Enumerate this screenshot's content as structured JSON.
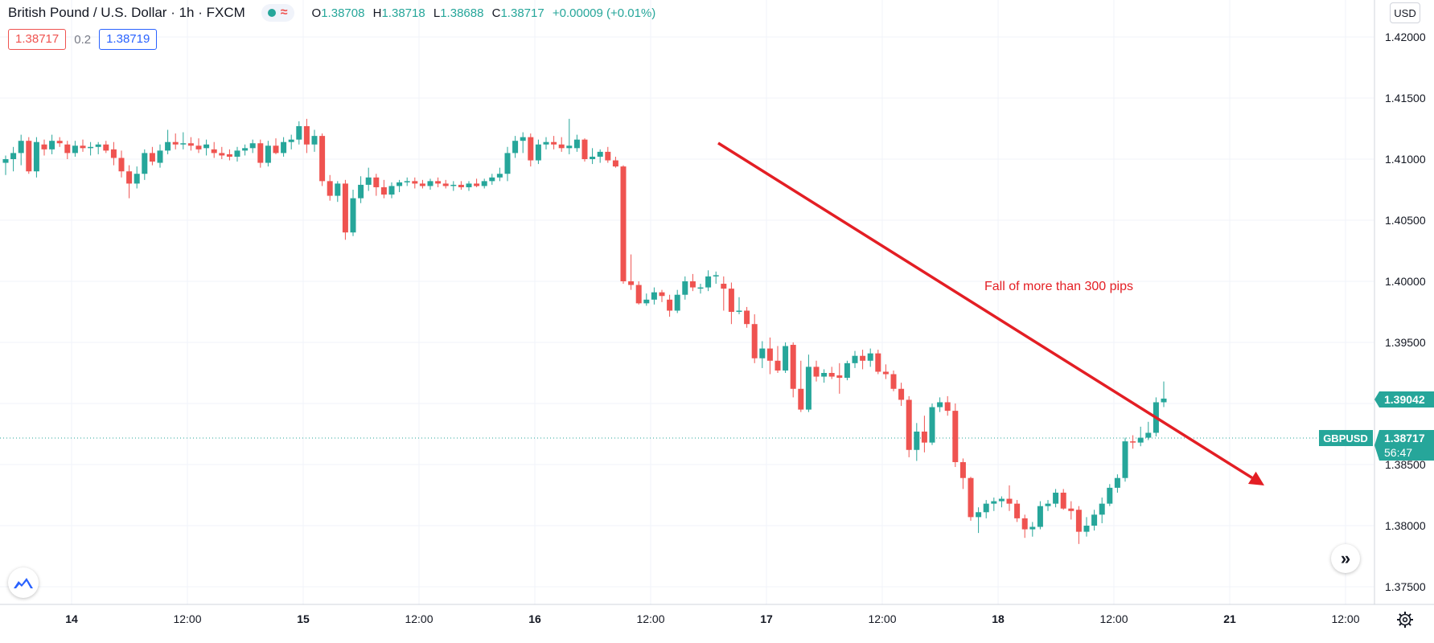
{
  "legend": {
    "symbol": "British Pound / U.S. Dollar · 1h · FXCM",
    "wave_glyph": "≈",
    "open_key": "O",
    "open": "1.38708",
    "high_key": "H",
    "high": "1.38718",
    "low_key": "L",
    "low": "1.38688",
    "close_key": "C",
    "close": "1.38717",
    "change": "+0.00009 (+0.01%)"
  },
  "quote": {
    "sell": "1.38717",
    "spread": "0.2",
    "buy": "1.38719"
  },
  "currency": "USD",
  "annotation": {
    "text": "Fall of more than 300 pips",
    "color": "#e31e24"
  },
  "price_labels": {
    "high_price": "1.39042",
    "current_symbol": "GBPUSD",
    "current_price": "1.38717",
    "countdown": "56:47"
  },
  "colors": {
    "up": "#26a69a",
    "down": "#ef5350",
    "arrow": "#e31e24",
    "grid": "#f0f3fa"
  },
  "icons": {
    "logo": "tradingview-logo-icon",
    "scroll": "scroll-to-realtime-icon",
    "settings": "gear-icon"
  },
  "chart_data": {
    "type": "candlestick",
    "title": "British Pound / U.S. Dollar · 1h · FXCM",
    "x_axis": {
      "type": "time",
      "ticks": [
        "14",
        "12:00",
        "15",
        "12:00",
        "16",
        "12:00",
        "17",
        "12:00",
        "18",
        "12:00",
        "21",
        "12:00"
      ]
    },
    "y_axis": {
      "ylim": [
        1.3735,
        1.4225
      ],
      "ticks": [
        "1.37500",
        "1.38000",
        "1.38500",
        "1.39000",
        "1.39500",
        "1.40000",
        "1.40500",
        "1.41000",
        "1.41500",
        "1.42000"
      ]
    },
    "grid": true,
    "current_price": 1.38717,
    "series": [
      {
        "ohlc": [
          [
            1.4097,
            1.4103,
            1.4087,
            1.41
          ],
          [
            1.41,
            1.411,
            1.409,
            1.4105
          ],
          [
            1.4105,
            1.412,
            1.4095,
            1.4115
          ],
          [
            1.4115,
            1.4118,
            1.4088,
            1.409
          ],
          [
            1.409,
            1.4118,
            1.4085,
            1.4114
          ],
          [
            1.4112,
            1.4116,
            1.4103,
            1.4108
          ],
          [
            1.4108,
            1.412,
            1.4104,
            1.4115
          ],
          [
            1.4115,
            1.4118,
            1.411,
            1.4113
          ],
          [
            1.4112,
            1.4115,
            1.41,
            1.4105
          ],
          [
            1.4105,
            1.4115,
            1.4102,
            1.4111
          ],
          [
            1.4111,
            1.4116,
            1.4106,
            1.4109
          ],
          [
            1.4109,
            1.4114,
            1.4103,
            1.411
          ],
          [
            1.411,
            1.4114,
            1.4104,
            1.4112
          ],
          [
            1.4112,
            1.4115,
            1.4105,
            1.4107
          ],
          [
            1.4108,
            1.4114,
            1.4095,
            1.4101
          ],
          [
            1.4101,
            1.4107,
            1.4085,
            1.409
          ],
          [
            1.409,
            1.4095,
            1.4068,
            1.408
          ],
          [
            1.408,
            1.4094,
            1.4076,
            1.4088
          ],
          [
            1.4088,
            1.4108,
            1.4083,
            1.4105
          ],
          [
            1.4105,
            1.411,
            1.4095,
            1.4098
          ],
          [
            1.4097,
            1.4112,
            1.4093,
            1.4107
          ],
          [
            1.4107,
            1.4124,
            1.4104,
            1.4114
          ],
          [
            1.4114,
            1.4121,
            1.4108,
            1.4112
          ],
          [
            1.4112,
            1.4122,
            1.4108,
            1.4113
          ],
          [
            1.4113,
            1.4118,
            1.4107,
            1.4111
          ],
          [
            1.4111,
            1.4117,
            1.4105,
            1.4108
          ],
          [
            1.4109,
            1.4116,
            1.4103,
            1.4112
          ],
          [
            1.4108,
            1.4114,
            1.4101,
            1.4105
          ],
          [
            1.4105,
            1.411,
            1.41,
            1.4103
          ],
          [
            1.4104,
            1.4108,
            1.4099,
            1.4102
          ],
          [
            1.4102,
            1.411,
            1.4098,
            1.4107
          ],
          [
            1.4107,
            1.4112,
            1.4103,
            1.4109
          ],
          [
            1.4109,
            1.4116,
            1.4105,
            1.4113
          ],
          [
            1.4113,
            1.4116,
            1.4093,
            1.4097
          ],
          [
            1.4097,
            1.4115,
            1.4094,
            1.4111
          ],
          [
            1.4111,
            1.4117,
            1.4104,
            1.4105
          ],
          [
            1.4105,
            1.4118,
            1.4102,
            1.4114
          ],
          [
            1.4114,
            1.412,
            1.4108,
            1.4116
          ],
          [
            1.4116,
            1.4131,
            1.4112,
            1.4127
          ],
          [
            1.4127,
            1.4133,
            1.4105,
            1.4112
          ],
          [
            1.4112,
            1.4124,
            1.4106,
            1.4119
          ],
          [
            1.4119,
            1.4121,
            1.4078,
            1.4082
          ],
          [
            1.4082,
            1.4087,
            1.4066,
            1.407
          ],
          [
            1.407,
            1.4082,
            1.4065,
            1.408
          ],
          [
            1.408,
            1.4083,
            1.4034,
            1.404
          ],
          [
            1.404,
            1.4075,
            1.4037,
            1.4068
          ],
          [
            1.4068,
            1.4086,
            1.4064,
            1.4079
          ],
          [
            1.4079,
            1.4093,
            1.4074,
            1.4085
          ],
          [
            1.4085,
            1.4088,
            1.407,
            1.4077
          ],
          [
            1.4077,
            1.4083,
            1.4068,
            1.4071
          ],
          [
            1.4071,
            1.4081,
            1.4068,
            1.4078
          ],
          [
            1.4078,
            1.4083,
            1.4073,
            1.4081
          ],
          [
            1.4081,
            1.4085,
            1.4078,
            1.4082
          ],
          [
            1.4082,
            1.4085,
            1.4076,
            1.408
          ],
          [
            1.408,
            1.4083,
            1.4076,
            1.4078
          ],
          [
            1.4078,
            1.4084,
            1.4075,
            1.4082
          ],
          [
            1.4082,
            1.4085,
            1.4077,
            1.408
          ],
          [
            1.408,
            1.4083,
            1.4076,
            1.4078
          ],
          [
            1.4078,
            1.4082,
            1.4074,
            1.4079
          ],
          [
            1.4079,
            1.4082,
            1.4075,
            1.4077
          ],
          [
            1.4077,
            1.4082,
            1.4074,
            1.408
          ],
          [
            1.408,
            1.4084,
            1.4077,
            1.4078
          ],
          [
            1.4078,
            1.4084,
            1.4076,
            1.4082
          ],
          [
            1.4082,
            1.4088,
            1.4079,
            1.4085
          ],
          [
            1.4085,
            1.4093,
            1.4082,
            1.4088
          ],
          [
            1.4088,
            1.411,
            1.4082,
            1.4105
          ],
          [
            1.4105,
            1.4119,
            1.4101,
            1.4115
          ],
          [
            1.4115,
            1.4122,
            1.4105,
            1.4118
          ],
          [
            1.4118,
            1.4121,
            1.4094,
            1.4099
          ],
          [
            1.4099,
            1.4116,
            1.4096,
            1.4112
          ],
          [
            1.4112,
            1.4118,
            1.4108,
            1.4114
          ],
          [
            1.4114,
            1.4119,
            1.4108,
            1.4112
          ],
          [
            1.4112,
            1.4118,
            1.4106,
            1.4109
          ],
          [
            1.4109,
            1.4133,
            1.4104,
            1.4111
          ],
          [
            1.4109,
            1.412,
            1.4106,
            1.4116
          ],
          [
            1.4116,
            1.4117,
            1.4098,
            1.41
          ],
          [
            1.41,
            1.4109,
            1.4096,
            1.4102
          ],
          [
            1.4102,
            1.4108,
            1.4097,
            1.4106
          ],
          [
            1.4106,
            1.411,
            1.4097,
            1.4099
          ],
          [
            1.4099,
            1.4102,
            1.4093,
            1.4094
          ],
          [
            1.4094,
            1.4095,
            1.3998,
            1.4
          ],
          [
            1.4,
            1.4022,
            1.3993,
            1.3997
          ],
          [
            1.3997,
            1.4,
            1.3981,
            1.3982
          ],
          [
            1.3982,
            1.399,
            1.398,
            1.3985
          ],
          [
            1.3985,
            1.3995,
            1.3981,
            1.3991
          ],
          [
            1.3991,
            1.3993,
            1.3983,
            1.3988
          ],
          [
            1.3985,
            1.3989,
            1.3971,
            1.3976
          ],
          [
            1.3976,
            1.3993,
            1.3974,
            1.3989
          ],
          [
            1.3989,
            1.4004,
            1.3985,
            1.4
          ],
          [
            1.4,
            1.4006,
            1.3992,
            1.3995
          ],
          [
            1.3994,
            1.3998,
            1.399,
            1.3995
          ],
          [
            1.3995,
            1.4009,
            1.3992,
            1.4004
          ],
          [
            1.4004,
            1.4008,
            1.3998,
            1.4005
          ],
          [
            1.3998,
            1.4004,
            1.3976,
            1.3994
          ],
          [
            1.3994,
            1.3999,
            1.3965,
            1.3975
          ],
          [
            1.3975,
            1.3987,
            1.3973,
            1.3976
          ],
          [
            1.3976,
            1.3979,
            1.3962,
            1.3965
          ],
          [
            1.3965,
            1.3973,
            1.3933,
            1.3937
          ],
          [
            1.3937,
            1.3951,
            1.3929,
            1.3945
          ],
          [
            1.3945,
            1.3954,
            1.3924,
            1.3935
          ],
          [
            1.3935,
            1.3947,
            1.3925,
            1.3927
          ],
          [
            1.3927,
            1.395,
            1.3925,
            1.3947
          ],
          [
            1.3948,
            1.395,
            1.3905,
            1.3912
          ],
          [
            1.3912,
            1.3935,
            1.3893,
            1.3895
          ],
          [
            1.3895,
            1.394,
            1.3893,
            1.393
          ],
          [
            1.393,
            1.3935,
            1.3918,
            1.3922
          ],
          [
            1.3922,
            1.3928,
            1.3917,
            1.3925
          ],
          [
            1.3925,
            1.393,
            1.392,
            1.3922
          ],
          [
            1.3923,
            1.3933,
            1.3908,
            1.3921
          ],
          [
            1.3921,
            1.3935,
            1.3919,
            1.3933
          ],
          [
            1.3933,
            1.3943,
            1.3929,
            1.3939
          ],
          [
            1.3939,
            1.3944,
            1.3928,
            1.3935
          ],
          [
            1.3935,
            1.3945,
            1.393,
            1.3941
          ],
          [
            1.3941,
            1.3944,
            1.3924,
            1.3926
          ],
          [
            1.3926,
            1.3932,
            1.392,
            1.3924
          ],
          [
            1.3924,
            1.3927,
            1.391,
            1.3912
          ],
          [
            1.3912,
            1.3917,
            1.3898,
            1.3903
          ],
          [
            1.3903,
            1.3906,
            1.3856,
            1.3862
          ],
          [
            1.3862,
            1.3884,
            1.3853,
            1.3877
          ],
          [
            1.3877,
            1.389,
            1.386,
            1.3868
          ],
          [
            1.3868,
            1.39,
            1.3866,
            1.3897
          ],
          [
            1.3897,
            1.3905,
            1.3893,
            1.3901
          ],
          [
            1.3901,
            1.3906,
            1.389,
            1.3894
          ],
          [
            1.3894,
            1.39,
            1.3848,
            1.3852
          ],
          [
            1.3852,
            1.3855,
            1.383,
            1.3839
          ],
          [
            1.3839,
            1.384,
            1.3804,
            1.3807
          ],
          [
            1.3807,
            1.3815,
            1.3794,
            1.3811
          ],
          [
            1.3811,
            1.3821,
            1.3806,
            1.3818
          ],
          [
            1.3818,
            1.3823,
            1.3812,
            1.382
          ],
          [
            1.382,
            1.3824,
            1.3815,
            1.3822
          ],
          [
            1.3822,
            1.3833,
            1.3812,
            1.3818
          ],
          [
            1.3818,
            1.3821,
            1.3803,
            1.3806
          ],
          [
            1.3806,
            1.3809,
            1.379,
            1.3797
          ],
          [
            1.3797,
            1.3803,
            1.3791,
            1.3799
          ],
          [
            1.3799,
            1.382,
            1.3797,
            1.3816
          ],
          [
            1.3816,
            1.3821,
            1.3812,
            1.3818
          ],
          [
            1.3818,
            1.383,
            1.3815,
            1.3827
          ],
          [
            1.3827,
            1.383,
            1.3813,
            1.3814
          ],
          [
            1.3814,
            1.382,
            1.3805,
            1.3812
          ],
          [
            1.3813,
            1.3816,
            1.3785,
            1.3795
          ],
          [
            1.3795,
            1.3807,
            1.3791,
            1.38
          ],
          [
            1.38,
            1.3813,
            1.3796,
            1.3809
          ],
          [
            1.3809,
            1.3823,
            1.3802,
            1.3818
          ],
          [
            1.3818,
            1.3834,
            1.3816,
            1.3831
          ],
          [
            1.3831,
            1.3842,
            1.3827,
            1.3839
          ],
          [
            1.3839,
            1.3872,
            1.3836,
            1.3869
          ],
          [
            1.3869,
            1.3874,
            1.3863,
            1.3868
          ],
          [
            1.3868,
            1.3881,
            1.3865,
            1.3872
          ],
          [
            1.3872,
            1.3885,
            1.387,
            1.3876
          ],
          [
            1.3876,
            1.3905,
            1.3873,
            1.3901
          ],
          [
            1.3901,
            1.3918,
            1.3897,
            1.3904
          ]
        ]
      }
    ]
  }
}
